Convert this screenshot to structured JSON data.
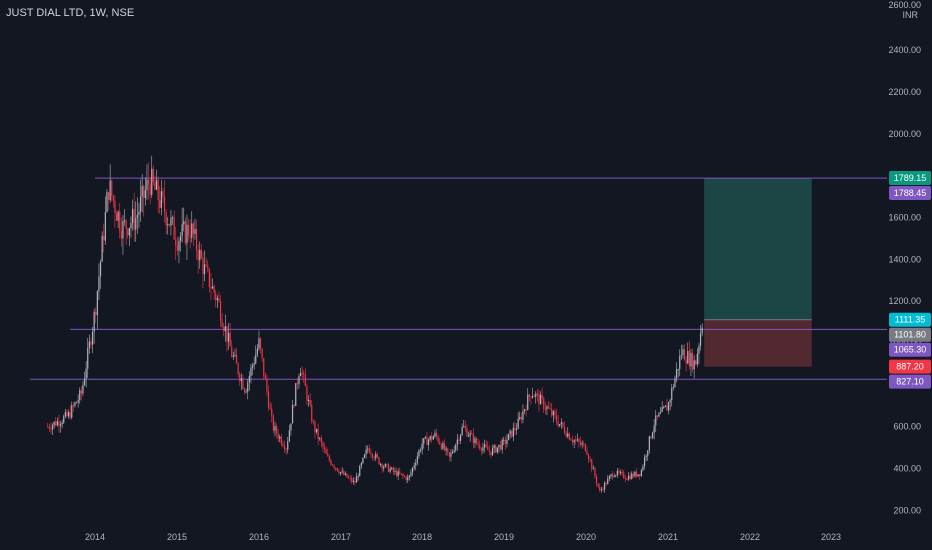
{
  "header": {
    "title": "JUST DIAL LTD, 1W, NSE"
  },
  "currency_label": "INR",
  "top_price_label": "2600.00",
  "colors": {
    "background": "#131722",
    "up": "#b2b5be",
    "down": "#f23645",
    "level_line": "#7e57c2",
    "profit_zone": "#1f4f4c",
    "loss_zone": "#5a2a33",
    "badge_teal": "#089981",
    "badge_cyan": "#00bcd4",
    "badge_gray": "#787b86",
    "badge_purple": "#7e57c2",
    "badge_red": "#f23645"
  },
  "chart_data": {
    "type": "candlestick",
    "title": "JUST DIAL LTD, 1W, NSE",
    "x_axis": {
      "ticks": [
        "2014",
        "2015",
        "2016",
        "2017",
        "2018",
        "2019",
        "2020",
        "2021",
        "2022",
        "2023"
      ]
    },
    "y_axis": {
      "unit": "INR",
      "ticks": [
        200,
        400,
        600,
        800,
        1000,
        1200,
        1400,
        1600,
        1800,
        2000,
        2200,
        2400,
        2600
      ],
      "range": [
        130,
        2640
      ]
    },
    "price_path": [
      [
        "2013-06",
        600
      ],
      [
        "2013-09",
        650
      ],
      [
        "2013-11",
        760
      ],
      [
        "2014-01",
        1150
      ],
      [
        "2014-03",
        1750
      ],
      [
        "2014-05",
        1550
      ],
      [
        "2014-07",
        1600
      ],
      [
        "2014-09",
        1780
      ],
      [
        "2014-11",
        1650
      ],
      [
        "2015-01",
        1500
      ],
      [
        "2015-03",
        1550
      ],
      [
        "2015-05",
        1350
      ],
      [
        "2015-07",
        1200
      ],
      [
        "2015-09",
        950
      ],
      [
        "2015-11",
        780
      ],
      [
        "2016-01",
        1000
      ],
      [
        "2016-03",
        600
      ],
      [
        "2016-05",
        500
      ],
      [
        "2016-07",
        900
      ],
      [
        "2016-09",
        600
      ],
      [
        "2016-11",
        450
      ],
      [
        "2017-01",
        380
      ],
      [
        "2017-03",
        330
      ],
      [
        "2017-05",
        500
      ],
      [
        "2017-07",
        420
      ],
      [
        "2017-09",
        380
      ],
      [
        "2017-11",
        350
      ],
      [
        "2018-01",
        520
      ],
      [
        "2018-03",
        560
      ],
      [
        "2018-05",
        450
      ],
      [
        "2018-07",
        600
      ],
      [
        "2018-09",
        520
      ],
      [
        "2018-11",
        480
      ],
      [
        "2019-01",
        520
      ],
      [
        "2019-03",
        610
      ],
      [
        "2019-05",
        770
      ],
      [
        "2019-07",
        700
      ],
      [
        "2019-09",
        620
      ],
      [
        "2019-11",
        540
      ],
      [
        "2020-01",
        500
      ],
      [
        "2020-03",
        290
      ],
      [
        "2020-05",
        380
      ],
      [
        "2020-07",
        360
      ],
      [
        "2020-09",
        380
      ],
      [
        "2020-11",
        620
      ],
      [
        "2021-01",
        700
      ],
      [
        "2021-03",
        960
      ],
      [
        "2021-05",
        900
      ],
      [
        "2021-06",
        1100
      ]
    ],
    "horizontal_levels": [
      1788.45,
      1065.3,
      827.1
    ],
    "position": {
      "target": 1789.15,
      "entry": 1111.35,
      "stop": 887.2,
      "start": "2021-06",
      "end": "2022-10"
    },
    "price_labels": [
      {
        "text": "1789.15",
        "value": 1789.15,
        "color_key": "badge_teal"
      },
      {
        "text": "1788.45",
        "value": 1788.45,
        "color_key": "badge_purple"
      },
      {
        "text": "1111.35",
        "value": 1111.35,
        "color_key": "badge_cyan"
      },
      {
        "text": "1101.80",
        "value": 1101.8,
        "color_key": "badge_gray"
      },
      {
        "text": "1065.30",
        "value": 1065.3,
        "color_key": "badge_purple"
      },
      {
        "text": "887.20",
        "value": 887.2,
        "color_key": "badge_red"
      },
      {
        "text": "827.10",
        "value": 827.1,
        "color_key": "badge_purple"
      }
    ]
  }
}
